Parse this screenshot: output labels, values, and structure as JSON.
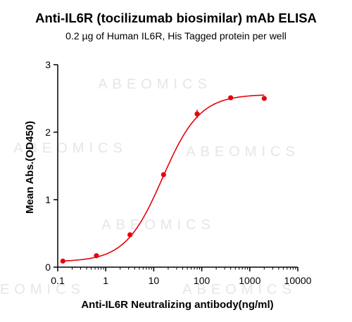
{
  "chart_data": {
    "type": "scatter",
    "title": "Anti-IL6R (tocilizumab biosimilar) mAb ELISA",
    "subtitle": "0.2 µg of Human IL6R, His Tagged protein per well",
    "xlabel": "Anti-IL6R Neutralizing antibody(ng/ml)",
    "ylabel": "Mean Abs.(OD450)",
    "xscale": "log",
    "xlim": [
      0.1,
      10000
    ],
    "ylim": [
      0,
      3
    ],
    "xticks": [
      "0.1",
      "1",
      "10",
      "100",
      "1000",
      "10000"
    ],
    "xtick_values": [
      0.1,
      1,
      10,
      100,
      1000,
      10000
    ],
    "yticks": [
      "0",
      "1",
      "2",
      "3"
    ],
    "ytick_values": [
      0,
      1,
      2,
      3
    ],
    "grid": false,
    "legend": "none",
    "watermark": "ABEOMICS",
    "color": "#e8000b",
    "series": [
      {
        "x": [
          0.128,
          0.64,
          3.2,
          16,
          80,
          400,
          2000
        ],
        "y": [
          0.09,
          0.17,
          0.48,
          1.37,
          2.27,
          2.51,
          2.5
        ],
        "fit": "4PL"
      }
    ]
  }
}
